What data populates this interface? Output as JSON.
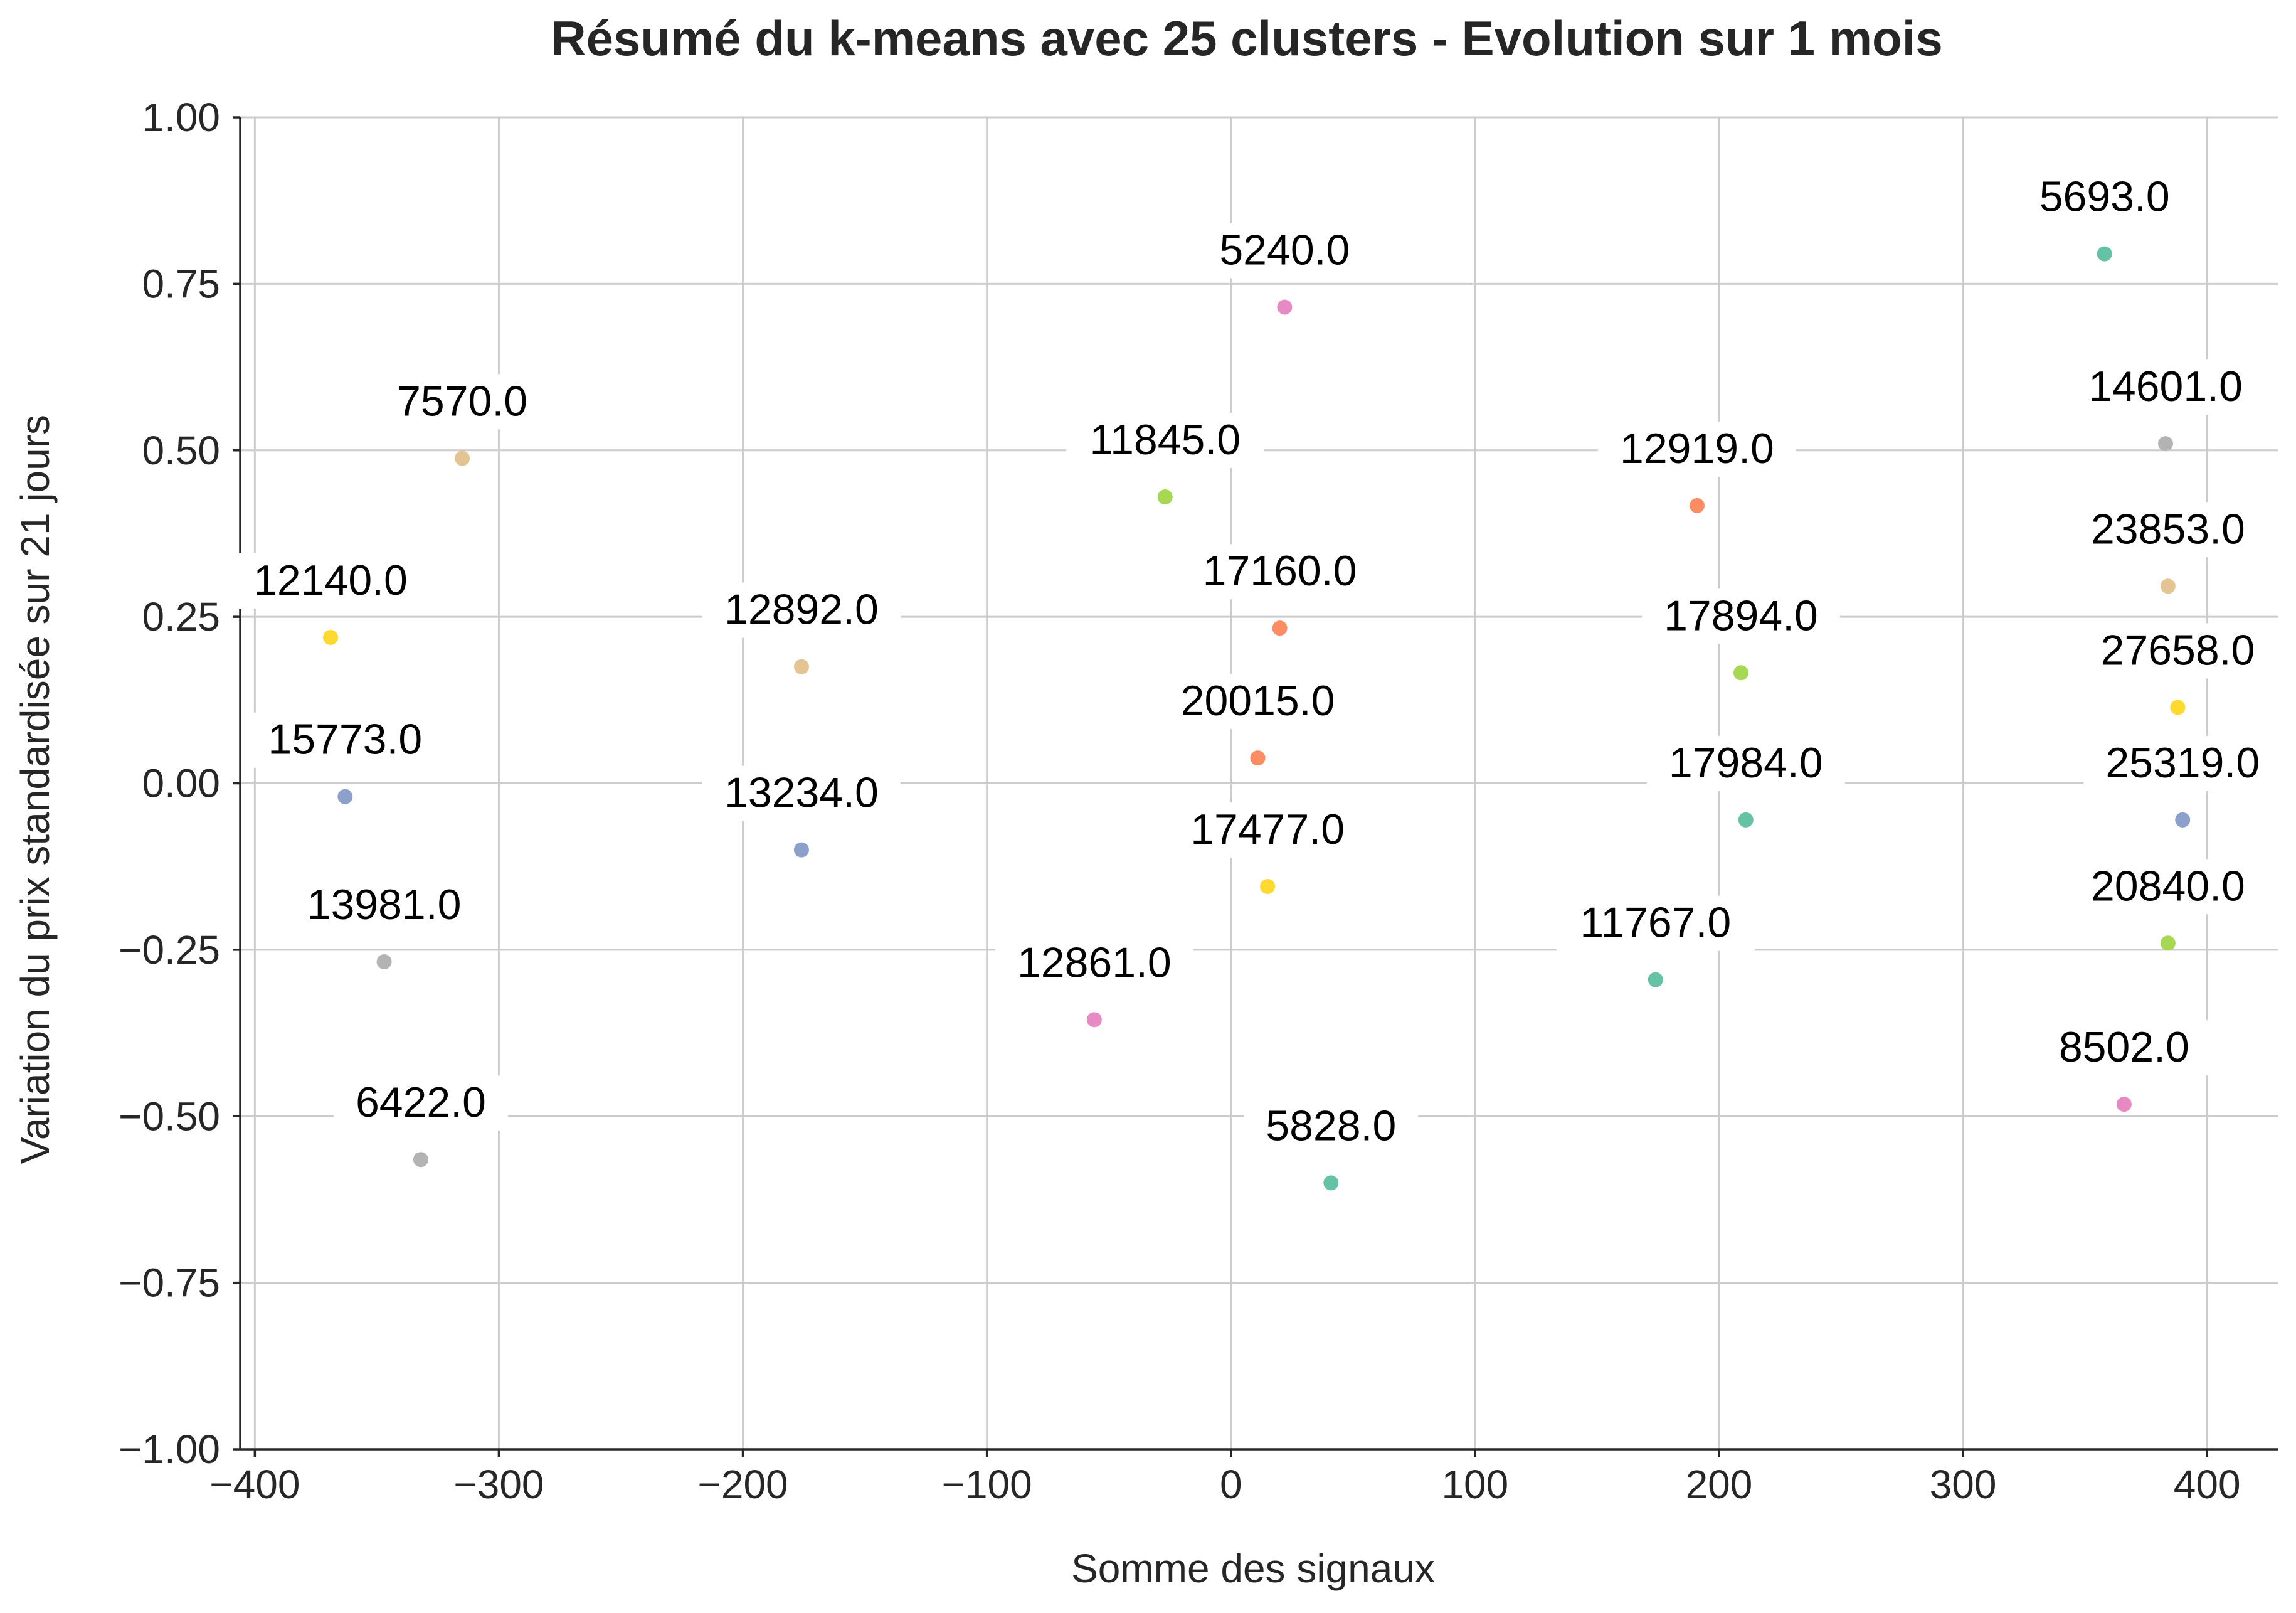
{
  "chart_data": {
    "type": "scatter",
    "title": "Résumé du k-means avec 25 clusters - Evolution sur 1 mois",
    "xlabel": "Somme des signaux",
    "ylabel": "Variation du prix standardisée sur 21 jours",
    "xlim": [
      -406,
      429
    ],
    "ylim": [
      -1.0,
      1.0
    ],
    "xticks": [
      -400,
      -300,
      -200,
      -100,
      0,
      100,
      200,
      300,
      400
    ],
    "xtick_labels": [
      "−400",
      "−300",
      "−200",
      "−100",
      "0",
      "100",
      "200",
      "300",
      "400"
    ],
    "yticks": [
      1.0,
      0.75,
      0.5,
      0.25,
      0.0,
      -0.25,
      -0.5,
      -0.75,
      -1.0
    ],
    "ytick_labels": [
      "1.00",
      "0.75",
      "0.50",
      "0.25",
      "0.00",
      "−0.25",
      "−0.50",
      "−0.75",
      "−1.00"
    ],
    "grid": true,
    "points": [
      {
        "x": 358,
        "y": 0.795,
        "label": "5693.0",
        "color": "#66c2a5"
      },
      {
        "x": 22,
        "y": 0.715,
        "label": "5240.0",
        "color": "#e78ac3"
      },
      {
        "x": -315,
        "y": 0.488,
        "label": "7570.0",
        "color": "#e5c494"
      },
      {
        "x": 383,
        "y": 0.51,
        "label": "14601.0",
        "color": "#b3b3b3"
      },
      {
        "x": -27,
        "y": 0.43,
        "label": "11845.0",
        "color": "#a6d854"
      },
      {
        "x": 191,
        "y": 0.417,
        "label": "12919.0",
        "color": "#fc8d62"
      },
      {
        "x": 384,
        "y": 0.296,
        "label": "23853.0",
        "color": "#e5c494"
      },
      {
        "x": -369,
        "y": 0.219,
        "label": "12140.0",
        "color": "#ffd92f"
      },
      {
        "x": 20,
        "y": 0.233,
        "label": "17160.0",
        "color": "#fc8d62"
      },
      {
        "x": -176,
        "y": 0.175,
        "label": "12892.0",
        "color": "#e5c494"
      },
      {
        "x": 209,
        "y": 0.166,
        "label": "17894.0",
        "color": "#a6d854"
      },
      {
        "x": 388,
        "y": 0.114,
        "label": "27658.0",
        "color": "#ffd92f"
      },
      {
        "x": 11,
        "y": 0.038,
        "label": "20015.0",
        "color": "#fc8d62"
      },
      {
        "x": -363,
        "y": -0.02,
        "label": "15773.0",
        "color": "#8da0cb"
      },
      {
        "x": 211,
        "y": -0.055,
        "label": "17984.0",
        "color": "#66c2a5"
      },
      {
        "x": 390,
        "y": -0.055,
        "label": "25319.0",
        "color": "#8da0cb"
      },
      {
        "x": -176,
        "y": -0.1,
        "label": "13234.0",
        "color": "#8da0cb"
      },
      {
        "x": 15,
        "y": -0.155,
        "label": "17477.0",
        "color": "#ffd92f"
      },
      {
        "x": 384,
        "y": -0.24,
        "label": "20840.0",
        "color": "#a6d854"
      },
      {
        "x": -347,
        "y": -0.268,
        "label": "13981.0",
        "color": "#b3b3b3"
      },
      {
        "x": 174,
        "y": -0.295,
        "label": "11767.0",
        "color": "#66c2a5"
      },
      {
        "x": -56,
        "y": -0.355,
        "label": "12861.0",
        "color": "#e78ac3"
      },
      {
        "x": 366,
        "y": -0.482,
        "label": "8502.0",
        "color": "#e78ac3"
      },
      {
        "x": -332,
        "y": -0.565,
        "label": "6422.0",
        "color": "#b3b3b3"
      },
      {
        "x": 41,
        "y": -0.6,
        "label": "5828.0",
        "color": "#66c2a5"
      }
    ]
  }
}
